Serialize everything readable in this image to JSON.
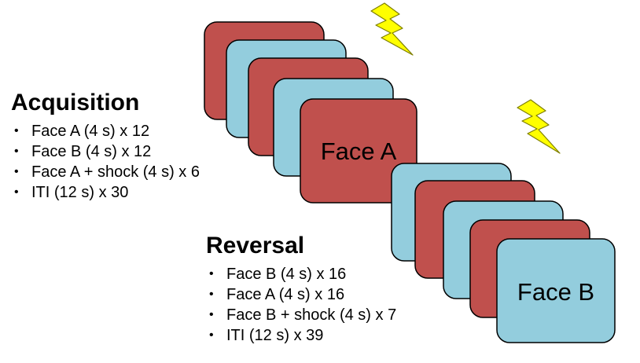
{
  "colors": {
    "face_a": "#c0504d",
    "face_b": "#93cddd",
    "card_stroke": "#000000",
    "bolt_fill": "#ffff00",
    "bolt_stroke": "#7f7f00"
  },
  "acquisition": {
    "title": "Acquisition",
    "items": [
      "Face A (4 s) x 12",
      "Face B (4 s) x 12",
      "Face A + shock (4 s) x 6",
      "ITI (12 s) x 30"
    ]
  },
  "reversal": {
    "title": "Reversal",
    "items": [
      "Face B (4 s) x 16",
      "Face A (4 s) x 16",
      "Face B + shock (4 s) x 7",
      "ITI (12 s) x 39"
    ]
  },
  "stacks": {
    "acquisition_stack": {
      "cards": [
        "face_a",
        "face_b",
        "face_a",
        "face_b",
        "face_a"
      ],
      "front_label": "Face A",
      "shock_icon": "lightning-bolt"
    },
    "reversal_stack": {
      "cards": [
        "face_b",
        "face_a",
        "face_b",
        "face_a",
        "face_b"
      ],
      "front_label": "Face B",
      "shock_icon": "lightning-bolt"
    }
  }
}
